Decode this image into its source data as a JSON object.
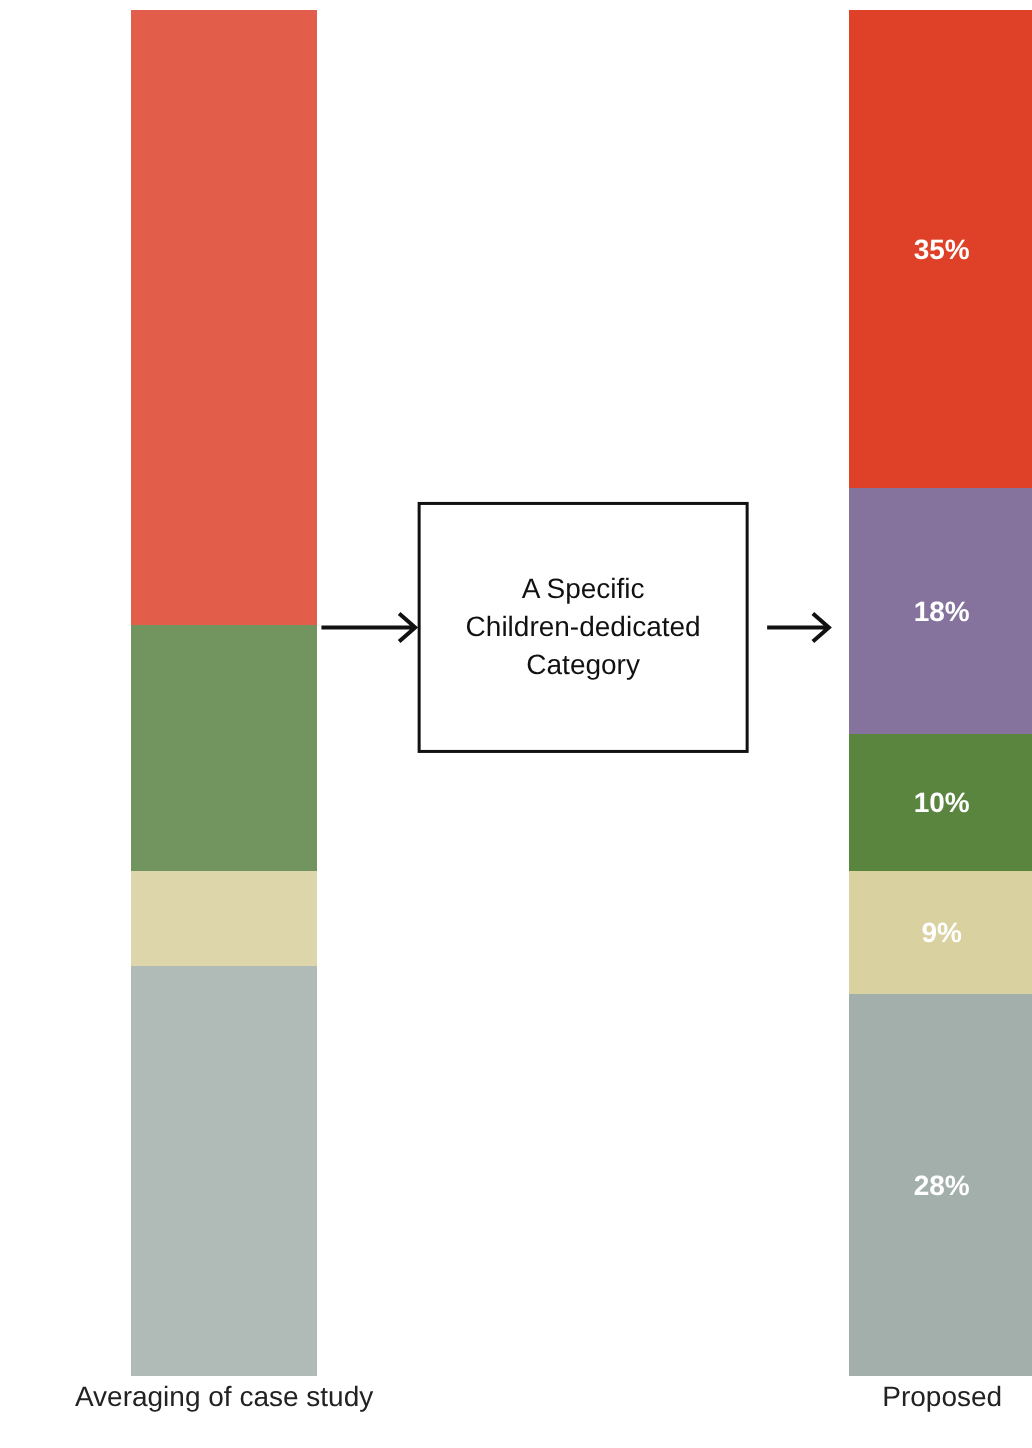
{
  "chart_data": {
    "type": "bar",
    "stacked": true,
    "categories": [
      "Averaging of case study",
      "Proposed"
    ],
    "ylim": [
      0,
      100
    ],
    "series": [
      {
        "colors": [
          "#b0bbb8",
          "#a3afab"
        ],
        "values": [
          30,
          28
        ],
        "value_labels": [
          null,
          "28%"
        ]
      },
      {
        "colors": [
          "#ded6ab",
          "#d9d19f"
        ],
        "values": [
          7,
          9
        ],
        "value_labels": [
          null,
          "9%"
        ]
      },
      {
        "colors": [
          "#72955f",
          "#5a853f"
        ],
        "values": [
          18,
          10
        ],
        "value_labels": [
          null,
          "10%"
        ]
      },
      {
        "colors": [
          "#85739e",
          "#85739e"
        ],
        "values": [
          null,
          18
        ],
        "value_labels": [
          null,
          "18%"
        ]
      },
      {
        "colors": [
          "#e35e4a",
          "#df4128"
        ],
        "values": [
          45,
          35
        ],
        "value_labels": [
          null,
          "35%"
        ]
      }
    ],
    "annotations": [
      "A Specific\nChildren-dedicated\nCategory"
    ]
  }
}
